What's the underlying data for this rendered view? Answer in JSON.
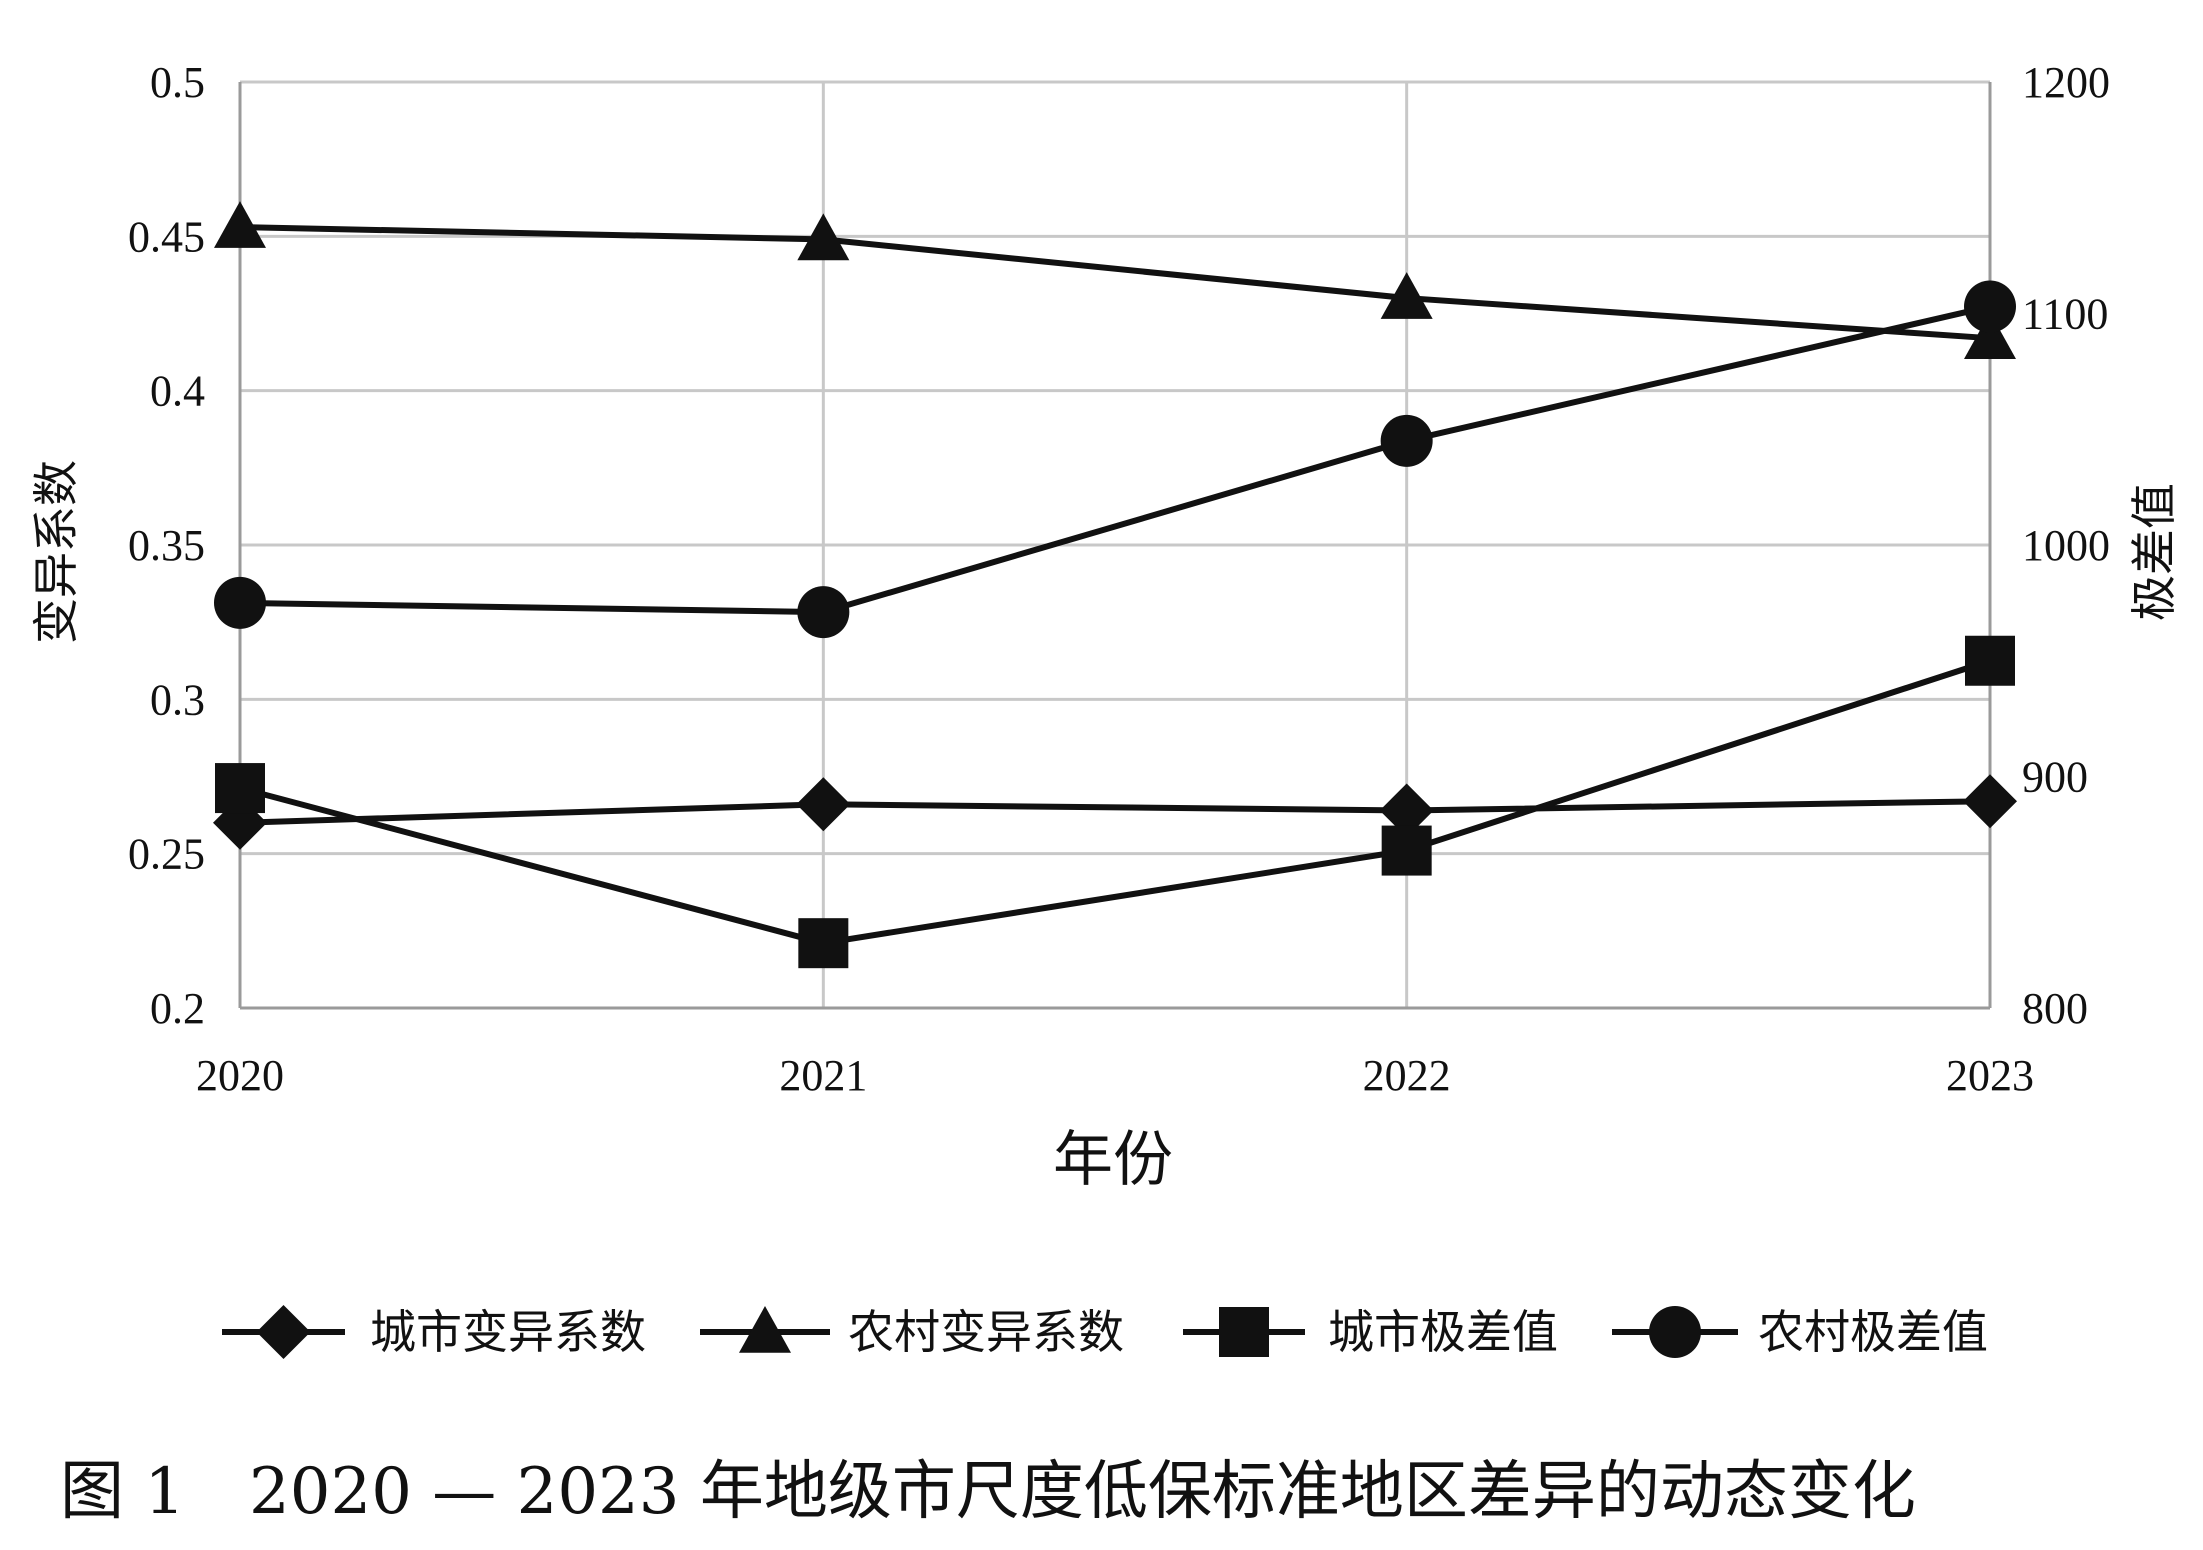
{
  "caption": "图 1　2020 — 2023 年地级市尺度低保标准地区差异的动态变化",
  "chart_data": {
    "type": "line",
    "categories": [
      "2020",
      "2021",
      "2022",
      "2023"
    ],
    "xlabel": "年份",
    "ylabel": "变异系数",
    "y2label": "极差值",
    "ylim": [
      0.2,
      0.5
    ],
    "yticks": [
      "0.2",
      "0.25",
      "0.3",
      "0.35",
      "0.4",
      "0.45",
      "0.5"
    ],
    "y2lim": [
      800,
      1200
    ],
    "y2ticks": [
      "800",
      "900",
      "1000",
      "1100",
      "1200"
    ],
    "grid": true,
    "legend_position": "bottom",
    "series": [
      {
        "name": "城市变异系数",
        "axis": "left",
        "marker": "diamond",
        "values": [
          0.26,
          0.266,
          0.264,
          0.267
        ]
      },
      {
        "name": "农村变异系数",
        "axis": "left",
        "marker": "triangle",
        "values": [
          0.453,
          0.449,
          0.43,
          0.417
        ]
      },
      {
        "name": "城市极差值",
        "axis": "right",
        "marker": "square",
        "values": [
          895,
          828,
          868,
          950
        ]
      },
      {
        "name": "农村极差值",
        "axis": "right",
        "marker": "circle",
        "values": [
          975,
          971,
          1045,
          1103
        ]
      }
    ]
  }
}
